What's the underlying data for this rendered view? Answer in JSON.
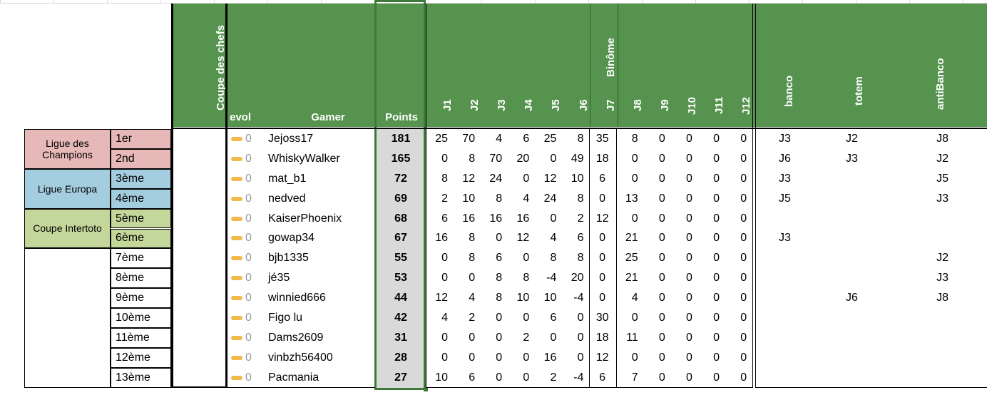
{
  "header": {
    "coupe_des_chefs": "Coupe des chefs",
    "evol": "evol",
    "gamer": "Gamer",
    "points": "Points",
    "rounds": [
      "J1",
      "J2",
      "J3",
      "J4",
      "J5",
      "J6",
      "J7",
      "J8",
      "J9",
      "J10",
      "J11",
      "J12"
    ],
    "binome": "Binôme",
    "banco": "banco",
    "totem": "totem",
    "anti_banco": "antiBanco",
    "color": "#55934f"
  },
  "zones": [
    {
      "label": "Ligue des Champions",
      "color": "#e6b8b7"
    },
    {
      "label": "Ligue Europa",
      "color": "#a5cde0"
    },
    {
      "label": "Coupe Intertoto",
      "color": "#c4d79b"
    }
  ],
  "rows": [
    {
      "rank": "1er",
      "evol": 0,
      "gamer": "Jejoss17",
      "points": 181,
      "rounds": [
        25,
        70,
        4,
        6,
        25,
        8,
        35,
        8,
        0,
        0,
        0,
        0
      ],
      "banco": "J3",
      "totem": "J2",
      "anti_banco": "J8"
    },
    {
      "rank": "2nd",
      "evol": 0,
      "gamer": "WhiskyWalker",
      "points": 165,
      "rounds": [
        0,
        8,
        70,
        20,
        0,
        49,
        18,
        0,
        0,
        0,
        0,
        0
      ],
      "banco": "J6",
      "totem": "J3",
      "anti_banco": "J2"
    },
    {
      "rank": "3ème",
      "evol": 0,
      "gamer": "mat_b1",
      "points": 72,
      "rounds": [
        8,
        12,
        24,
        0,
        12,
        10,
        6,
        0,
        0,
        0,
        0,
        0
      ],
      "banco": "J3",
      "totem": null,
      "anti_banco": "J5"
    },
    {
      "rank": "4ème",
      "evol": 0,
      "gamer": "nedved",
      "points": 69,
      "rounds": [
        2,
        10,
        8,
        4,
        24,
        8,
        0,
        13,
        0,
        0,
        0,
        0
      ],
      "banco": "J5",
      "totem": null,
      "anti_banco": "J3"
    },
    {
      "rank": "5ème",
      "evol": 0,
      "gamer": "KaiserPhoenix",
      "points": 68,
      "rounds": [
        6,
        16,
        16,
        16,
        0,
        2,
        12,
        0,
        0,
        0,
        0,
        0
      ],
      "banco": null,
      "totem": null,
      "anti_banco": null
    },
    {
      "rank": "6ème",
      "evol": 0,
      "gamer": "gowap34",
      "points": 67,
      "rounds": [
        16,
        8,
        0,
        12,
        4,
        6,
        0,
        21,
        0,
        0,
        0,
        0
      ],
      "banco": "J3",
      "totem": null,
      "anti_banco": null
    },
    {
      "rank": "7ème",
      "evol": 0,
      "gamer": "bjb1335",
      "points": 55,
      "rounds": [
        0,
        8,
        6,
        0,
        8,
        8,
        0,
        25,
        0,
        0,
        0,
        0
      ],
      "banco": null,
      "totem": null,
      "anti_banco": "J2"
    },
    {
      "rank": "8ème",
      "evol": 0,
      "gamer": "jé35",
      "points": 53,
      "rounds": [
        0,
        0,
        8,
        8,
        -4,
        20,
        0,
        21,
        0,
        0,
        0,
        0
      ],
      "banco": null,
      "totem": null,
      "anti_banco": "J3"
    },
    {
      "rank": "9ème",
      "evol": 0,
      "gamer": "winnied666",
      "points": 44,
      "rounds": [
        12,
        4,
        8,
        10,
        10,
        -4,
        0,
        4,
        0,
        0,
        0,
        0
      ],
      "banco": null,
      "totem": "J6",
      "anti_banco": "J8"
    },
    {
      "rank": "10ème",
      "evol": 0,
      "gamer": "Figo lu",
      "points": 42,
      "rounds": [
        4,
        2,
        0,
        0,
        6,
        0,
        30,
        0,
        0,
        0,
        0,
        0
      ],
      "banco": null,
      "totem": null,
      "anti_banco": null
    },
    {
      "rank": "11ème",
      "evol": 0,
      "gamer": "Dams2609",
      "points": 31,
      "rounds": [
        0,
        0,
        0,
        2,
        0,
        0,
        18,
        11,
        0,
        0,
        0,
        0
      ],
      "banco": null,
      "totem": null,
      "anti_banco": null
    },
    {
      "rank": "12ème",
      "evol": 0,
      "gamer": "vinbzh56400",
      "points": 28,
      "rounds": [
        0,
        0,
        0,
        0,
        16,
        0,
        12,
        0,
        0,
        0,
        0,
        0
      ],
      "banco": null,
      "totem": null,
      "anti_banco": null
    },
    {
      "rank": "13ème",
      "evol": 0,
      "gamer": "Pacmania",
      "points": 27,
      "rounds": [
        10,
        6,
        0,
        0,
        2,
        -4,
        6,
        7,
        0,
        0,
        0,
        0
      ],
      "banco": null,
      "totem": null,
      "anti_banco": null
    }
  ]
}
